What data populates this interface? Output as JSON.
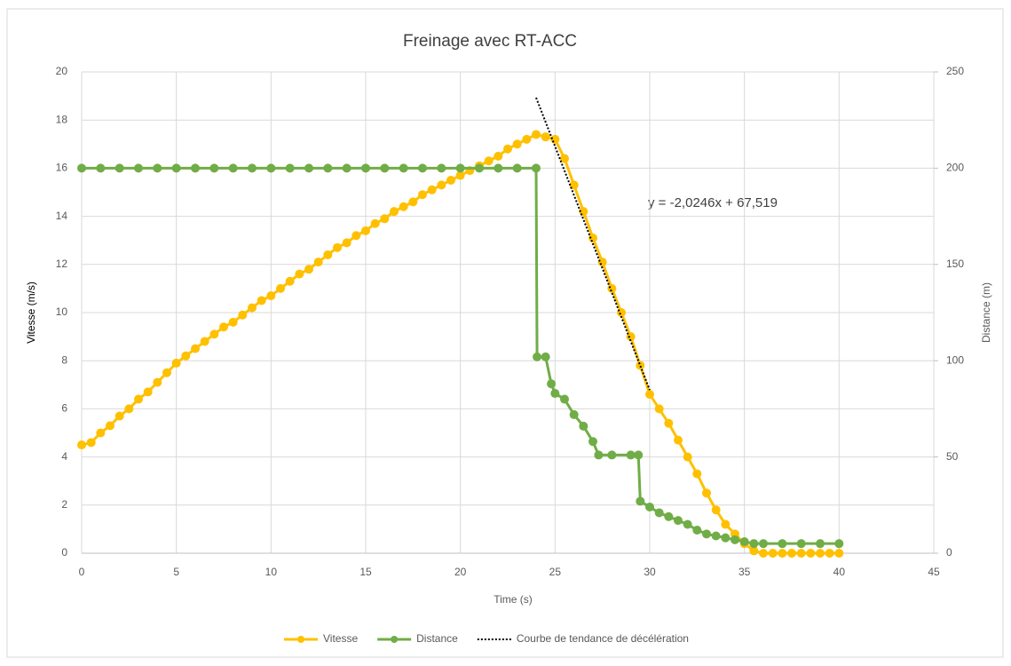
{
  "chart_data": {
    "type": "line",
    "title": "Freinage avec RT-ACC",
    "xlabel": "Time (s)",
    "ylabel": "Vitesse (m/s)",
    "y2label": "Distance (m)",
    "annotation": "y = -2,0246x + 67,519",
    "xlim": [
      0,
      45
    ],
    "xticks": [
      0,
      5,
      10,
      15,
      20,
      25,
      30,
      35,
      40,
      45
    ],
    "ylim": [
      0,
      20
    ],
    "yticks": [
      0,
      2,
      4,
      6,
      8,
      10,
      12,
      14,
      16,
      18,
      20
    ],
    "y2lim": [
      0,
      250
    ],
    "y2ticks": [
      0,
      50,
      100,
      150,
      200,
      250
    ],
    "grid": true,
    "legend": "bottom",
    "series": [
      {
        "name": "Vitesse",
        "color": "#FFC000",
        "marker": true,
        "x": [
          0,
          0.5,
          1,
          1.5,
          2,
          2.5,
          3,
          3.5,
          4,
          4.5,
          5,
          5.5,
          6,
          6.5,
          7,
          7.5,
          8,
          8.5,
          9,
          9.5,
          10,
          10.5,
          11,
          11.5,
          12,
          12.5,
          13,
          13.5,
          14,
          14.5,
          15,
          15.5,
          16,
          16.5,
          17,
          17.5,
          18,
          18.5,
          19,
          19.5,
          20,
          20.5,
          21,
          21.5,
          22,
          22.5,
          23,
          23.5,
          24,
          24.5,
          25,
          25.5,
          26,
          26.5,
          27,
          27.5,
          28,
          28.5,
          29,
          29.5,
          30,
          30.5,
          31,
          31.5,
          32,
          32.5,
          33,
          33.5,
          34,
          34.5,
          35,
          35.5,
          36,
          36.5,
          37,
          37.5,
          38,
          38.5,
          39,
          39.5,
          40
        ],
        "values": [
          4.5,
          4.6,
          5.0,
          5.3,
          5.7,
          6.0,
          6.4,
          6.7,
          7.1,
          7.5,
          7.9,
          8.2,
          8.5,
          8.8,
          9.1,
          9.4,
          9.6,
          9.9,
          10.2,
          10.5,
          10.7,
          11.0,
          11.3,
          11.6,
          11.8,
          12.1,
          12.4,
          12.7,
          12.9,
          13.2,
          13.4,
          13.7,
          13.9,
          14.2,
          14.4,
          14.6,
          14.9,
          15.1,
          15.3,
          15.5,
          15.7,
          15.9,
          16.1,
          16.3,
          16.5,
          16.8,
          17.0,
          17.2,
          17.4,
          17.3,
          17.2,
          16.4,
          15.3,
          14.2,
          13.1,
          12.1,
          11.0,
          10.0,
          9.0,
          7.8,
          6.6,
          6.0,
          5.4,
          4.7,
          4.0,
          3.3,
          2.5,
          1.8,
          1.2,
          0.8,
          0.4,
          0.1,
          0,
          0,
          0,
          0,
          0,
          0,
          0,
          0,
          0
        ]
      },
      {
        "name": "Distance",
        "color": "#70AD47",
        "marker": true,
        "axis": "y2",
        "x": [
          0,
          1,
          2,
          3,
          4,
          5,
          6,
          7,
          8,
          9,
          10,
          11,
          12,
          13,
          14,
          15,
          16,
          17,
          18,
          19,
          20,
          21,
          22,
          23,
          24,
          24.05,
          24.5,
          24.8,
          25,
          25.5,
          26,
          26.5,
          27,
          27.3,
          28,
          29,
          29.4,
          29.5,
          30,
          30.5,
          31,
          31.5,
          32,
          32.5,
          33,
          33.5,
          34,
          34.5,
          35,
          35.5,
          36,
          37,
          38,
          39,
          40
        ],
        "values": [
          200,
          200,
          200,
          200,
          200,
          200,
          200,
          200,
          200,
          200,
          200,
          200,
          200,
          200,
          200,
          200,
          200,
          200,
          200,
          200,
          200,
          200,
          200,
          200,
          200,
          102,
          102,
          88,
          83,
          80,
          72,
          66,
          58,
          51,
          51,
          51,
          51,
          27,
          24,
          21,
          19,
          17,
          15,
          12,
          10,
          9,
          8,
          7,
          6,
          5,
          5,
          5,
          5,
          5,
          5
        ]
      },
      {
        "name": "Courbe de tendance de décélération",
        "color": "#000000",
        "marker": false,
        "dash": true,
        "x": [
          24,
          30
        ],
        "values": [
          18.93,
          6.78
        ]
      }
    ]
  }
}
